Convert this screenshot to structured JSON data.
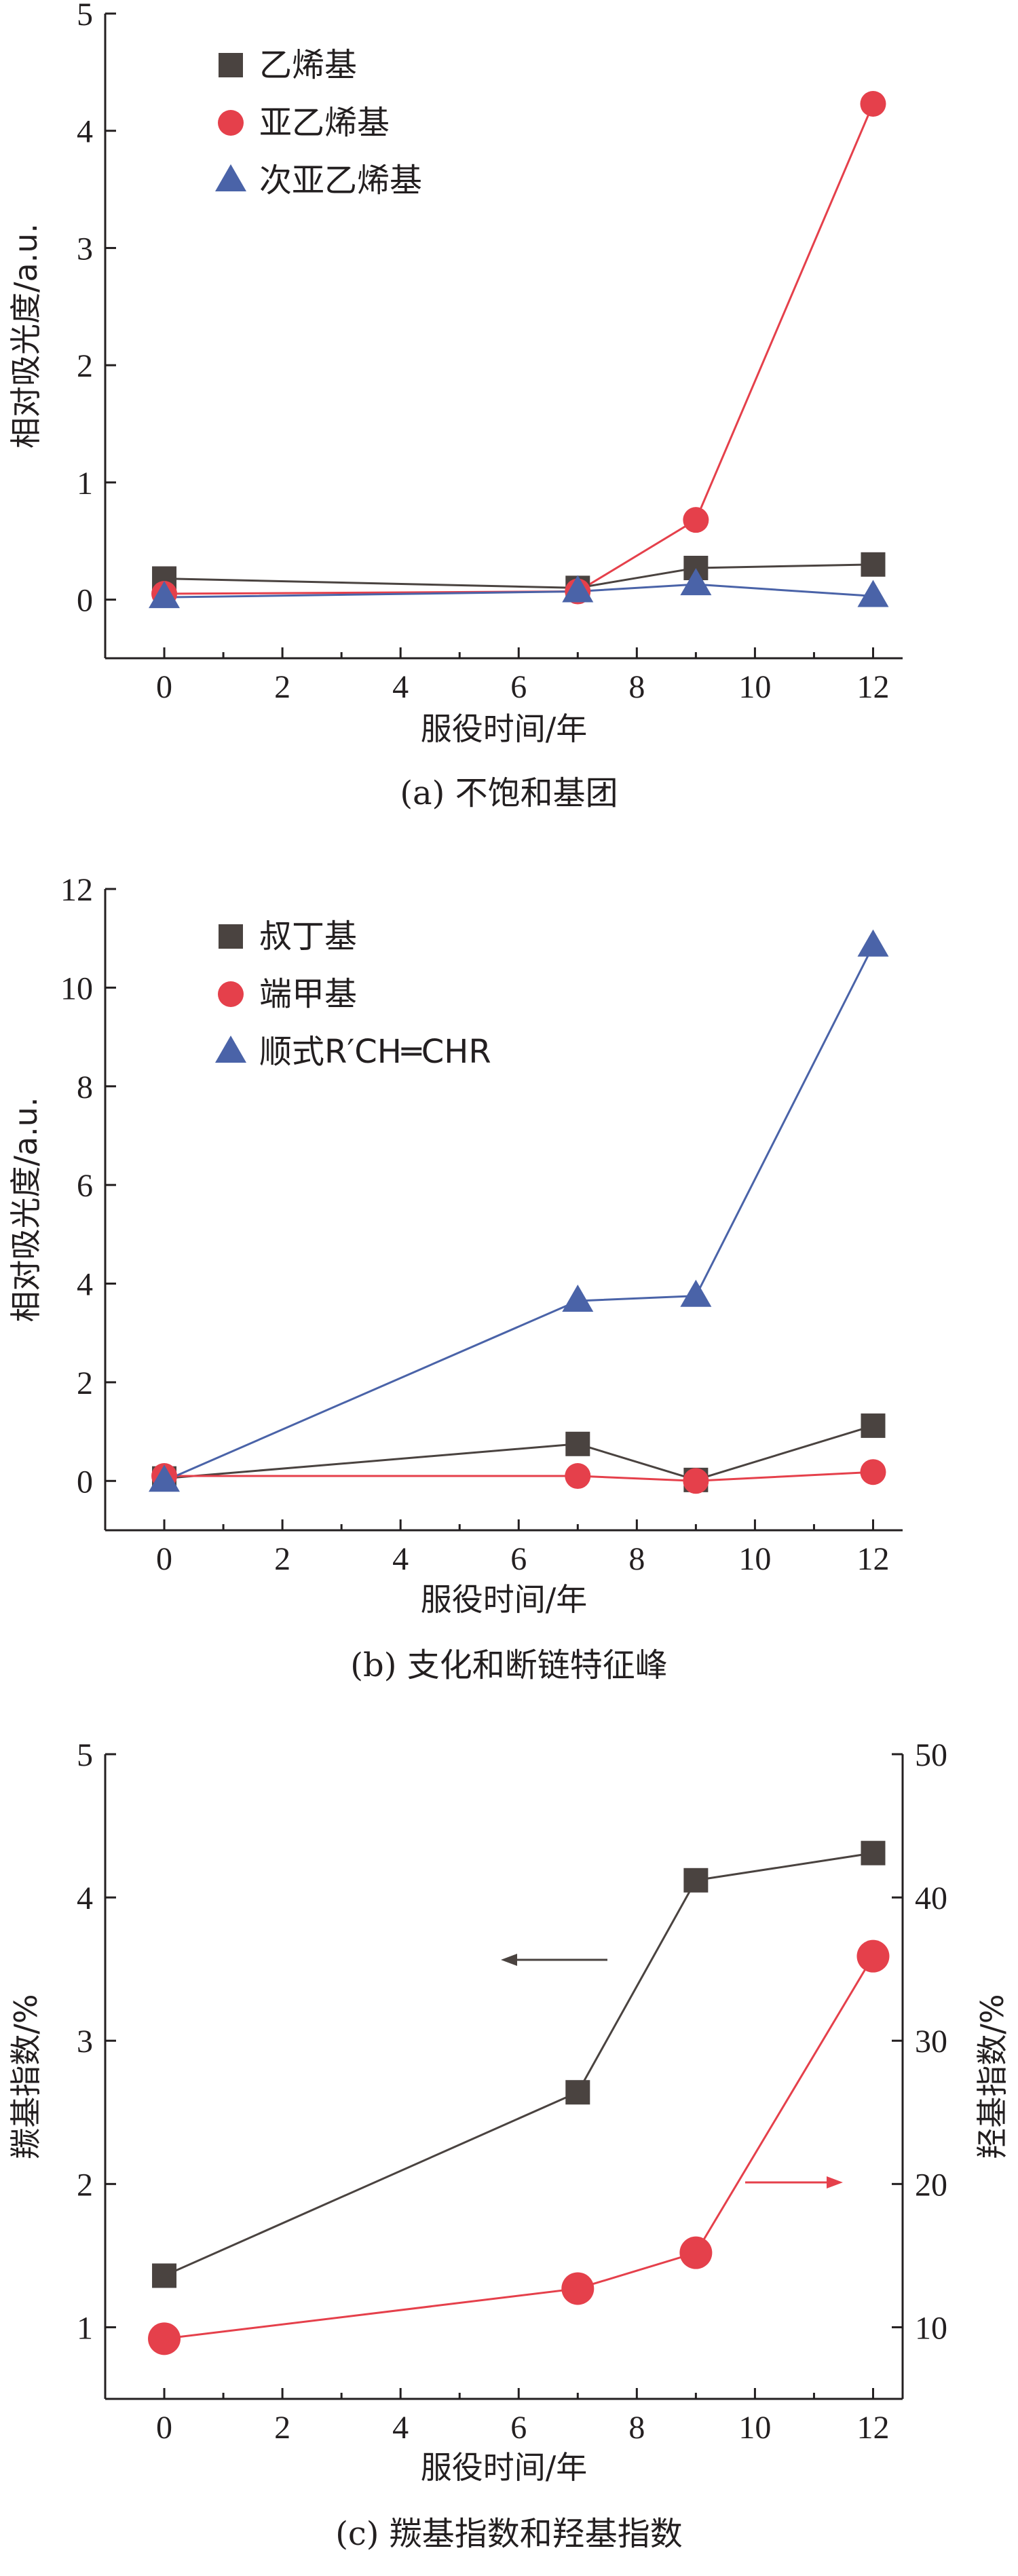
{
  "colors": {
    "dark": "#4a4340",
    "red": "#e5404b",
    "blue": "#4a63a8",
    "axis": "#231f20"
  },
  "chart_data": [
    {
      "type": "line",
      "caption": "(a) 不饱和基团",
      "xlabel": "服役时间/年",
      "ylabel": "相对吸光度/a.u.",
      "xlim": [
        -1,
        12.5
      ],
      "ylim": [
        -0.5,
        5
      ],
      "xticks": [
        0,
        2,
        4,
        6,
        8,
        10,
        12
      ],
      "yticks": [
        0,
        1,
        2,
        3,
        4,
        5
      ],
      "legend_position": "top-left",
      "series": [
        {
          "name": "乙烯基",
          "marker": "square",
          "color": "#4a4340",
          "x": [
            0,
            7,
            9,
            12
          ],
          "y": [
            0.18,
            0.1,
            0.27,
            0.3
          ]
        },
        {
          "name": "亚乙烯基",
          "marker": "circle",
          "color": "#e5404b",
          "x": [
            0,
            7,
            9,
            12
          ],
          "y": [
            0.05,
            0.07,
            0.68,
            4.23
          ]
        },
        {
          "name": "次亚乙烯基",
          "marker": "triangle",
          "color": "#4a63a8",
          "x": [
            0,
            7,
            9,
            12
          ],
          "y": [
            0.02,
            0.07,
            0.13,
            0.03
          ]
        }
      ]
    },
    {
      "type": "line",
      "caption": "(b) 支化和断链特征峰",
      "xlabel": "服役时间/年",
      "ylabel": "相对吸光度/a.u.",
      "xlim": [
        -1,
        12.5
      ],
      "ylim": [
        -1,
        12
      ],
      "xticks": [
        0,
        2,
        4,
        6,
        8,
        10,
        12
      ],
      "yticks": [
        0,
        2,
        4,
        6,
        8,
        10,
        12
      ],
      "legend_position": "top-left",
      "series": [
        {
          "name": "叔丁基",
          "marker": "square",
          "color": "#4a4340",
          "x": [
            0,
            7,
            9,
            12
          ],
          "y": [
            0.05,
            0.75,
            0.02,
            1.12
          ]
        },
        {
          "name": "端甲基",
          "marker": "circle",
          "color": "#e5404b",
          "x": [
            0,
            7,
            9,
            12
          ],
          "y": [
            0.1,
            0.1,
            0.0,
            0.18
          ]
        },
        {
          "name": "顺式R′CH═CHR",
          "marker": "triangle",
          "color": "#4a63a8",
          "x": [
            0,
            7,
            9,
            12
          ],
          "y": [
            0.0,
            3.65,
            3.75,
            10.85
          ]
        }
      ]
    },
    {
      "type": "line",
      "caption": "(c) 羰基指数和羟基指数",
      "xlabel": "服役时间/年",
      "ylabel": "羰基指数/%",
      "ylabel_right": "羟基指数/%",
      "xlim": [
        -1,
        12.5
      ],
      "ylim": [
        0.5,
        5
      ],
      "ylim_right": [
        5,
        50
      ],
      "xticks": [
        0,
        2,
        4,
        6,
        8,
        10,
        12
      ],
      "yticks": [
        1,
        2,
        3,
        4,
        5
      ],
      "yticks_right": [
        10,
        20,
        30,
        40,
        50
      ],
      "series": [
        {
          "marker": "square",
          "color": "#4a4340",
          "axis": "left",
          "x": [
            0,
            7,
            9,
            12
          ],
          "y": [
            1.36,
            2.64,
            4.12,
            4.31
          ]
        },
        {
          "marker": "big-circle",
          "color": "#e5404b",
          "axis": "right",
          "x": [
            0,
            7,
            9,
            12
          ],
          "y": [
            9.2,
            12.7,
            15.2,
            35.9
          ]
        }
      ]
    }
  ]
}
